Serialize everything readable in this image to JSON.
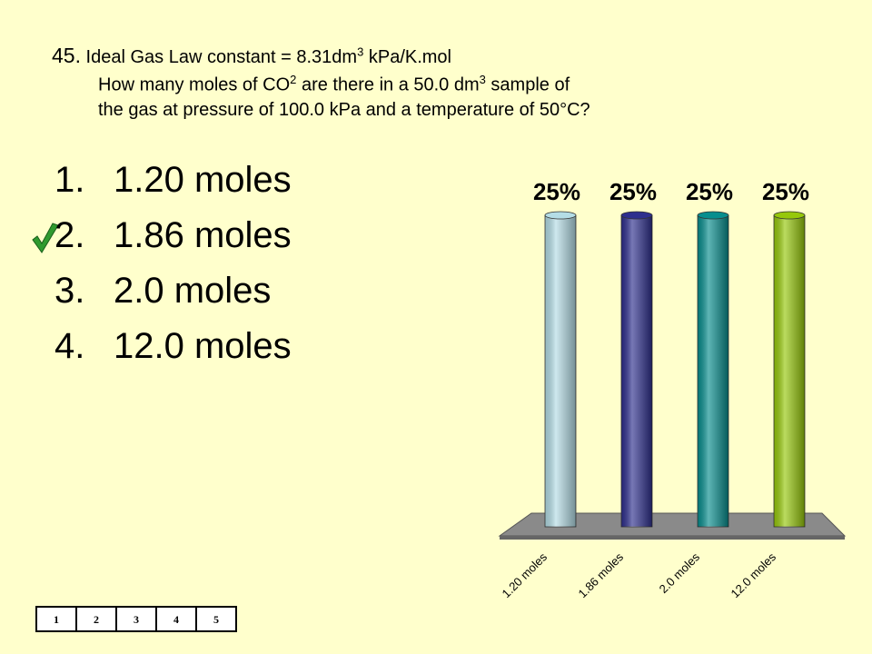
{
  "question": {
    "number": "45.",
    "lines": [
      [
        "Ideal Gas Law constant = 8.31dm",
        "3",
        " kPa/K.mol"
      ],
      [
        "How many moles of CO",
        "2",
        " are there in a 50.0 dm",
        "3",
        " sample of"
      ],
      [
        "the gas at pressure of 100.0 kPa and a temperature of 50°C?"
      ]
    ]
  },
  "answers": [
    {
      "number": "1.",
      "text": "1.20 moles"
    },
    {
      "number": "2.",
      "text": "1.86 moles"
    },
    {
      "number": "3.",
      "text": "2.0 moles"
    },
    {
      "number": "4.",
      "text": "12.0 moles"
    }
  ],
  "chart_data": {
    "type": "bar",
    "categories": [
      "1.20 moles",
      "1.86 moles",
      "2.0 moles",
      "12.0 moles"
    ],
    "values": [
      25,
      25,
      25,
      25
    ],
    "value_labels": [
      "25%",
      "25%",
      "25%",
      "25%"
    ],
    "colors": [
      "#b4dde6",
      "#2e2f8e",
      "#078e8e",
      "#96c80a"
    ]
  },
  "counter": [
    "1",
    "2",
    "3",
    "4",
    "5"
  ]
}
